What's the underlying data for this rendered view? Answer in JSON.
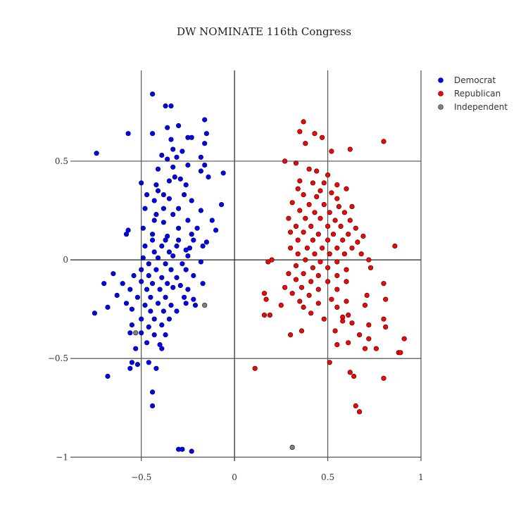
{
  "chart_data": {
    "type": "scatter",
    "title": "DW NOMINATE 116th Congress",
    "xlabel": "",
    "ylabel": "",
    "xlim": [
      -0.88,
      1.0
    ],
    "ylim": [
      -1.02,
      0.96
    ],
    "x_ticks": [
      -0.5,
      0,
      0.5,
      1
    ],
    "x_tick_labels": [
      "−0.5",
      "0",
      "0.5",
      "1"
    ],
    "y_ticks": [
      -1,
      -0.5,
      0,
      0.5
    ],
    "y_tick_labels": [
      "−1",
      "−0.5",
      "0",
      "0.5"
    ],
    "grid": true,
    "legend_position": "top-right",
    "series": [
      {
        "name": "Democrat",
        "color": "#0000ff",
        "points": [
          [
            -0.44,
            0.84
          ],
          [
            -0.37,
            0.78
          ],
          [
            -0.34,
            0.78
          ],
          [
            -0.16,
            0.71
          ],
          [
            -0.57,
            0.64
          ],
          [
            -0.44,
            0.64
          ],
          [
            -0.36,
            0.67
          ],
          [
            -0.3,
            0.68
          ],
          [
            -0.25,
            0.62
          ],
          [
            -0.23,
            0.62
          ],
          [
            -0.15,
            0.64
          ],
          [
            -0.34,
            0.61
          ],
          [
            -0.33,
            0.56
          ],
          [
            -0.28,
            0.55
          ],
          [
            -0.74,
            0.54
          ],
          [
            -0.16,
            0.59
          ],
          [
            -0.39,
            0.53
          ],
          [
            -0.31,
            0.52
          ],
          [
            -0.36,
            0.51
          ],
          [
            -0.18,
            0.52
          ],
          [
            -0.41,
            0.46
          ],
          [
            -0.25,
            0.48
          ],
          [
            -0.16,
            0.48
          ],
          [
            -0.33,
            0.47
          ],
          [
            -0.06,
            0.44
          ],
          [
            -0.18,
            0.45
          ],
          [
            -0.14,
            0.42
          ],
          [
            -0.5,
            0.39
          ],
          [
            -0.32,
            0.42
          ],
          [
            -0.29,
            0.41
          ],
          [
            -0.42,
            0.38
          ],
          [
            -0.35,
            0.4
          ],
          [
            -0.26,
            0.38
          ],
          [
            -0.41,
            0.35
          ],
          [
            -0.47,
            0.33
          ],
          [
            -0.38,
            0.33
          ],
          [
            -0.27,
            0.33
          ],
          [
            -0.43,
            0.3
          ],
          [
            -0.35,
            0.31
          ],
          [
            -0.23,
            0.3
          ],
          [
            -0.07,
            0.28
          ],
          [
            -0.48,
            0.26
          ],
          [
            -0.38,
            0.26
          ],
          [
            -0.3,
            0.26
          ],
          [
            -0.18,
            0.25
          ],
          [
            -0.42,
            0.23
          ],
          [
            -0.33,
            0.23
          ],
          [
            -0.12,
            0.2
          ],
          [
            -0.43,
            0.2
          ],
          [
            -0.38,
            0.19
          ],
          [
            -0.25,
            0.2
          ],
          [
            -0.57,
            0.15
          ],
          [
            -0.49,
            0.16
          ],
          [
            -0.3,
            0.16
          ],
          [
            -0.2,
            0.16
          ],
          [
            -0.58,
            0.13
          ],
          [
            -0.44,
            0.13
          ],
          [
            -0.36,
            0.12
          ],
          [
            -0.23,
            0.13
          ],
          [
            -0.1,
            0.15
          ],
          [
            -0.44,
            0.1
          ],
          [
            -0.37,
            0.1
          ],
          [
            -0.3,
            0.1
          ],
          [
            -0.22,
            0.1
          ],
          [
            -0.15,
            0.09
          ],
          [
            -0.48,
            0.07
          ],
          [
            -0.39,
            0.07
          ],
          [
            -0.31,
            0.07
          ],
          [
            -0.24,
            0.06
          ],
          [
            -0.43,
            0.04
          ],
          [
            -0.35,
            0.04
          ],
          [
            -0.26,
            0.05
          ],
          [
            -0.17,
            0.07
          ],
          [
            -0.49,
            0.01
          ],
          [
            -0.41,
            0.01
          ],
          [
            -0.33,
            0.02
          ],
          [
            -0.25,
            0.02
          ],
          [
            -0.46,
            -0.02
          ],
          [
            -0.37,
            -0.02
          ],
          [
            -0.28,
            -0.02
          ],
          [
            -0.18,
            -0.01
          ],
          [
            -0.5,
            -0.05
          ],
          [
            -0.42,
            -0.05
          ],
          [
            -0.34,
            -0.05
          ],
          [
            -0.26,
            -0.05
          ],
          [
            -0.65,
            -0.07
          ],
          [
            -0.54,
            -0.08
          ],
          [
            -0.46,
            -0.08
          ],
          [
            -0.39,
            -0.09
          ],
          [
            -0.31,
            -0.09
          ],
          [
            -0.22,
            -0.08
          ],
          [
            -0.6,
            -0.12
          ],
          [
            -0.5,
            -0.11
          ],
          [
            -0.44,
            -0.12
          ],
          [
            -0.36,
            -0.12
          ],
          [
            -0.29,
            -0.13
          ],
          [
            -0.7,
            -0.12
          ],
          [
            -0.56,
            -0.15
          ],
          [
            -0.47,
            -0.15
          ],
          [
            -0.4,
            -0.15
          ],
          [
            -0.33,
            -0.14
          ],
          [
            -0.25,
            -0.15
          ],
          [
            -0.17,
            -0.12
          ],
          [
            -0.63,
            -0.18
          ],
          [
            -0.52,
            -0.19
          ],
          [
            -0.45,
            -0.19
          ],
          [
            -0.37,
            -0.19
          ],
          [
            -0.27,
            -0.19
          ],
          [
            -0.22,
            -0.2
          ],
          [
            -0.58,
            -0.22
          ],
          [
            -0.48,
            -0.23
          ],
          [
            -0.41,
            -0.22
          ],
          [
            -0.34,
            -0.23
          ],
          [
            -0.26,
            -0.22
          ],
          [
            -0.68,
            -0.24
          ],
          [
            -0.55,
            -0.25
          ],
          [
            -0.45,
            -0.26
          ],
          [
            -0.38,
            -0.26
          ],
          [
            -0.31,
            -0.26
          ],
          [
            -0.21,
            -0.23
          ],
          [
            -0.75,
            -0.27
          ],
          [
            -0.5,
            -0.3
          ],
          [
            -0.43,
            -0.3
          ],
          [
            -0.35,
            -0.3
          ],
          [
            -0.55,
            -0.33
          ],
          [
            -0.46,
            -0.34
          ],
          [
            -0.39,
            -0.33
          ],
          [
            -0.56,
            -0.37
          ],
          [
            -0.5,
            -0.37
          ],
          [
            -0.43,
            -0.38
          ],
          [
            -0.37,
            -0.38
          ],
          [
            -0.47,
            -0.42
          ],
          [
            -0.4,
            -0.43
          ],
          [
            -0.53,
            -0.45
          ],
          [
            -0.39,
            -0.45
          ],
          [
            -0.55,
            -0.52
          ],
          [
            -0.52,
            -0.53
          ],
          [
            -0.46,
            -0.52
          ],
          [
            -0.56,
            -0.55
          ],
          [
            -0.42,
            -0.55
          ],
          [
            -0.68,
            -0.59
          ],
          [
            -0.44,
            -0.67
          ],
          [
            -0.44,
            -0.74
          ],
          [
            -0.3,
            -0.96
          ],
          [
            -0.28,
            -0.96
          ],
          [
            -0.23,
            -0.97
          ]
        ]
      },
      {
        "name": "Republican",
        "color": "#ff0000",
        "points": [
          [
            0.37,
            0.7
          ],
          [
            0.35,
            0.65
          ],
          [
            0.43,
            0.64
          ],
          [
            0.47,
            0.62
          ],
          [
            0.8,
            0.6
          ],
          [
            0.38,
            0.59
          ],
          [
            0.52,
            0.55
          ],
          [
            0.62,
            0.56
          ],
          [
            0.27,
            0.5
          ],
          [
            0.33,
            0.49
          ],
          [
            0.4,
            0.46
          ],
          [
            0.44,
            0.45
          ],
          [
            0.5,
            0.43
          ],
          [
            0.35,
            0.4
          ],
          [
            0.42,
            0.39
          ],
          [
            0.48,
            0.39
          ],
          [
            0.55,
            0.38
          ],
          [
            0.34,
            0.36
          ],
          [
            0.46,
            0.35
          ],
          [
            0.52,
            0.34
          ],
          [
            0.6,
            0.36
          ],
          [
            0.37,
            0.33
          ],
          [
            0.44,
            0.32
          ],
          [
            0.55,
            0.31
          ],
          [
            0.31,
            0.29
          ],
          [
            0.4,
            0.28
          ],
          [
            0.48,
            0.28
          ],
          [
            0.56,
            0.27
          ],
          [
            0.63,
            0.27
          ],
          [
            0.35,
            0.25
          ],
          [
            0.43,
            0.24
          ],
          [
            0.51,
            0.24
          ],
          [
            0.59,
            0.24
          ],
          [
            0.29,
            0.21
          ],
          [
            0.38,
            0.21
          ],
          [
            0.46,
            0.21
          ],
          [
            0.54,
            0.2
          ],
          [
            0.62,
            0.2
          ],
          [
            0.33,
            0.17
          ],
          [
            0.41,
            0.17
          ],
          [
            0.5,
            0.17
          ],
          [
            0.57,
            0.17
          ],
          [
            0.65,
            0.16
          ],
          [
            0.3,
            0.14
          ],
          [
            0.37,
            0.14
          ],
          [
            0.45,
            0.13
          ],
          [
            0.53,
            0.13
          ],
          [
            0.61,
            0.13
          ],
          [
            0.69,
            0.12
          ],
          [
            0.34,
            0.1
          ],
          [
            0.42,
            0.1
          ],
          [
            0.5,
            0.1
          ],
          [
            0.58,
            0.1
          ],
          [
            0.66,
            0.09
          ],
          [
            0.3,
            0.06
          ],
          [
            0.39,
            0.06
          ],
          [
            0.47,
            0.06
          ],
          [
            0.55,
            0.06
          ],
          [
            0.63,
            0.06
          ],
          [
            0.86,
            0.07
          ],
          [
            0.34,
            0.03
          ],
          [
            0.43,
            0.03
          ],
          [
            0.51,
            0.03
          ],
          [
            0.59,
            0.03
          ],
          [
            0.68,
            0.03
          ],
          [
            0.2,
            0.0
          ],
          [
            0.38,
            0.0
          ],
          [
            0.46,
            -0.01
          ],
          [
            0.55,
            -0.01
          ],
          [
            0.72,
            0.0
          ],
          [
            0.18,
            -0.01
          ],
          [
            0.33,
            -0.03
          ],
          [
            0.42,
            -0.04
          ],
          [
            0.5,
            -0.04
          ],
          [
            0.6,
            -0.05
          ],
          [
            0.29,
            -0.07
          ],
          [
            0.37,
            -0.07
          ],
          [
            0.45,
            -0.08
          ],
          [
            0.55,
            -0.08
          ],
          [
            0.73,
            -0.04
          ],
          [
            0.33,
            -0.1
          ],
          [
            0.41,
            -0.11
          ],
          [
            0.5,
            -0.11
          ],
          [
            0.6,
            -0.11
          ],
          [
            0.27,
            -0.14
          ],
          [
            0.36,
            -0.14
          ],
          [
            0.45,
            -0.15
          ],
          [
            0.55,
            -0.15
          ],
          [
            0.8,
            -0.12
          ],
          [
            0.16,
            -0.17
          ],
          [
            0.31,
            -0.17
          ],
          [
            0.4,
            -0.18
          ],
          [
            0.52,
            -0.2
          ],
          [
            0.71,
            -0.18
          ],
          [
            0.17,
            -0.2
          ],
          [
            0.35,
            -0.21
          ],
          [
            0.45,
            -0.22
          ],
          [
            0.6,
            -0.21
          ],
          [
            0.81,
            -0.2
          ],
          [
            0.25,
            -0.23
          ],
          [
            0.37,
            -0.24
          ],
          [
            0.55,
            -0.24
          ],
          [
            0.7,
            -0.23
          ],
          [
            0.16,
            -0.28
          ],
          [
            0.41,
            -0.27
          ],
          [
            0.58,
            -0.29
          ],
          [
            0.61,
            -0.28
          ],
          [
            0.19,
            -0.28
          ],
          [
            0.48,
            -0.3
          ],
          [
            0.58,
            -0.31
          ],
          [
            0.8,
            -0.3
          ],
          [
            0.63,
            -0.32
          ],
          [
            0.72,
            -0.33
          ],
          [
            0.36,
            -0.36
          ],
          [
            0.54,
            -0.36
          ],
          [
            0.81,
            -0.34
          ],
          [
            0.3,
            -0.38
          ],
          [
            0.67,
            -0.38
          ],
          [
            0.61,
            -0.42
          ],
          [
            0.72,
            -0.4
          ],
          [
            0.91,
            -0.4
          ],
          [
            0.55,
            -0.43
          ],
          [
            0.7,
            -0.45
          ],
          [
            0.76,
            -0.45
          ],
          [
            0.88,
            -0.47
          ],
          [
            0.89,
            -0.47
          ],
          [
            0.11,
            -0.55
          ],
          [
            0.51,
            -0.52
          ],
          [
            0.62,
            -0.57
          ],
          [
            0.64,
            -0.59
          ],
          [
            0.8,
            -0.6
          ],
          [
            0.65,
            -0.74
          ],
          [
            0.67,
            -0.77
          ]
        ]
      },
      {
        "name": "Independent",
        "color": "#808080",
        "points": [
          [
            -0.16,
            -0.23
          ],
          [
            -0.53,
            -0.37
          ],
          [
            0.31,
            -0.95
          ]
        ]
      }
    ]
  }
}
